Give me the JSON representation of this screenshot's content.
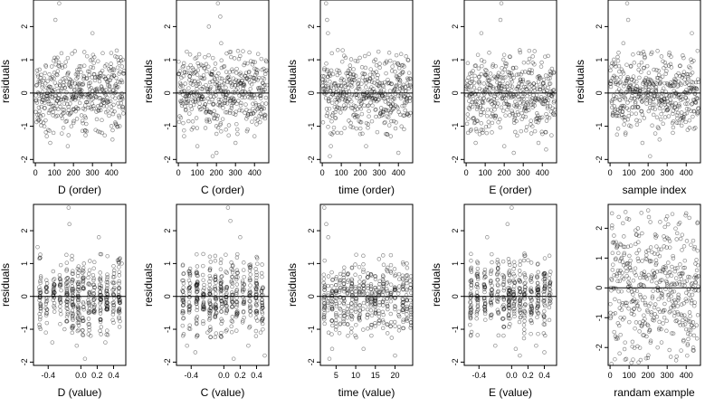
{
  "figure": {
    "panels": [
      {
        "id": "d-order",
        "xlabel": "D (order)",
        "ylabel": "residuals",
        "xticks": [
          "0",
          "100",
          "200",
          "300",
          "400"
        ],
        "yticks": [
          "-2",
          "-1",
          "0",
          "1",
          "2"
        ]
      },
      {
        "id": "c-order",
        "xlabel": "C (order)",
        "ylabel": "residuals",
        "xticks": [
          "0",
          "100",
          "200",
          "300",
          "400"
        ],
        "yticks": [
          "-2",
          "-1",
          "0",
          "1",
          "2"
        ]
      },
      {
        "id": "time-order",
        "xlabel": "time (order)",
        "ylabel": "residuals",
        "xticks": [
          "0",
          "100",
          "200",
          "300",
          "400"
        ],
        "yticks": [
          "-2",
          "-1",
          "0",
          "1",
          "2"
        ]
      },
      {
        "id": "e-order",
        "xlabel": "E (order)",
        "ylabel": "residuals",
        "xticks": [
          "0",
          "100",
          "200",
          "300",
          "400"
        ],
        "yticks": [
          "-2",
          "-1",
          "0",
          "1",
          "2"
        ]
      },
      {
        "id": "sample-index",
        "xlabel": "sample index",
        "ylabel": "residuals",
        "xticks": [
          "0",
          "100",
          "200",
          "300",
          "400"
        ],
        "yticks": [
          "-2",
          "-1",
          "0",
          "1",
          "2"
        ]
      },
      {
        "id": "d-value",
        "xlabel": "D (value)",
        "ylabel": "residuals",
        "xticks": [
          "-0.4",
          "0.0",
          "0.2",
          "0.4"
        ],
        "yticks": [
          "-2",
          "-1",
          "0",
          "1",
          "2"
        ]
      },
      {
        "id": "c-value",
        "xlabel": "C (value)",
        "ylabel": "residuals",
        "xticks": [
          "-0.4",
          "0.0",
          "0.2",
          "0.4"
        ],
        "yticks": [
          "-2",
          "-1",
          "0",
          "1",
          "2"
        ]
      },
      {
        "id": "time-value",
        "xlabel": "time (value)",
        "ylabel": "residuals",
        "xticks": [
          "5",
          "10",
          "15",
          "20"
        ],
        "yticks": [
          "-2",
          "-1",
          "0",
          "1",
          "2"
        ]
      },
      {
        "id": "e-value",
        "xlabel": "E (value)",
        "ylabel": "residuals",
        "xticks": [
          "-0.4",
          "0.0",
          "0.2",
          "0.4"
        ],
        "yticks": [
          "-2",
          "-1",
          "0",
          "1",
          "2"
        ]
      },
      {
        "id": "random-example",
        "xlabel": "randam example",
        "ylabel": "",
        "xticks": [
          "0",
          "100",
          "200",
          "300",
          "400"
        ],
        "yticks": [
          "-2",
          "-1",
          "0",
          "1",
          "2"
        ]
      }
    ]
  },
  "chart_data": [
    {
      "type": "scatter",
      "xlabel": "D (order)",
      "ylabel": "residuals",
      "xlim": [
        -10,
        475
      ],
      "ylim": [
        -2.1,
        2.8
      ],
      "n_points": 465,
      "x_pattern": "index",
      "reference_line_y": 0,
      "points": [
        [
          20,
          -0.8
        ],
        [
          60,
          -1.3
        ],
        [
          78,
          -1.5
        ],
        [
          95,
          -1.2
        ],
        [
          105,
          2.2
        ],
        [
          108,
          -0.7
        ],
        [
          125,
          2.7
        ],
        [
          150,
          -0.6
        ],
        [
          170,
          -1.6
        ],
        [
          200,
          -0.9
        ],
        [
          220,
          0.7
        ],
        [
          240,
          0.8
        ],
        [
          260,
          -0.5
        ],
        [
          300,
          1.8
        ],
        [
          340,
          0.6
        ],
        [
          350,
          -1.2
        ],
        [
          405,
          -1.4
        ],
        [
          420,
          1.1
        ],
        [
          440,
          0.9
        ],
        [
          460,
          1.0
        ]
      ]
    },
    {
      "type": "scatter",
      "xlabel": "C (order)",
      "ylabel": "residuals",
      "xlim": [
        -10,
        475
      ],
      "ylim": [
        -2.1,
        2.8
      ],
      "n_points": 465,
      "x_pattern": "index",
      "reference_line_y": 0,
      "points": [
        [
          30,
          -1.3
        ],
        [
          70,
          -1.1
        ],
        [
          100,
          -1.6
        ],
        [
          150,
          -0.8
        ],
        [
          160,
          2.0
        ],
        [
          180,
          -1.9
        ],
        [
          200,
          -1.8
        ],
        [
          208,
          2.7
        ],
        [
          220,
          2.3
        ],
        [
          225,
          1.5
        ],
        [
          250,
          -1.1
        ],
        [
          270,
          -0.6
        ],
        [
          300,
          -1.5
        ],
        [
          350,
          0.9
        ],
        [
          400,
          -1.3
        ],
        [
          440,
          0.7
        ]
      ]
    },
    {
      "type": "scatter",
      "xlabel": "time (order)",
      "ylabel": "residuals",
      "xlim": [
        -10,
        475
      ],
      "ylim": [
        -2.1,
        2.8
      ],
      "n_points": 465,
      "x_pattern": "index",
      "reference_line_y": 0,
      "points": [
        [
          20,
          2.7
        ],
        [
          25,
          2.2
        ],
        [
          30,
          1.8
        ],
        [
          40,
          -1.9
        ],
        [
          45,
          -1.6
        ],
        [
          80,
          -1.2
        ],
        [
          150,
          -0.9
        ],
        [
          230,
          -1.6
        ],
        [
          300,
          -0.7
        ],
        [
          360,
          -1.3
        ],
        [
          400,
          -1.8
        ],
        [
          430,
          0.8
        ],
        [
          450,
          1.0
        ]
      ]
    },
    {
      "type": "scatter",
      "xlabel": "E (order)",
      "ylabel": "residuals",
      "xlim": [
        -10,
        475
      ],
      "ylim": [
        -2.1,
        2.8
      ],
      "n_points": 465,
      "x_pattern": "index",
      "reference_line_y": 0,
      "points": [
        [
          10,
          -1.2
        ],
        [
          50,
          -1.5
        ],
        [
          80,
          1.8
        ],
        [
          120,
          -1.0
        ],
        [
          180,
          2.2
        ],
        [
          185,
          2.7
        ],
        [
          200,
          -1.6
        ],
        [
          250,
          -1.8
        ],
        [
          300,
          -0.7
        ],
        [
          350,
          1.1
        ],
        [
          380,
          -1.5
        ],
        [
          420,
          -1.7
        ],
        [
          460,
          0.6
        ]
      ]
    },
    {
      "type": "scatter",
      "xlabel": "sample index",
      "ylabel": "residuals",
      "xlim": [
        -10,
        475
      ],
      "ylim": [
        -2.1,
        2.8
      ],
      "n_points": 465,
      "x_pattern": "index",
      "reference_line_y": 0,
      "points": [
        [
          40,
          -0.6
        ],
        [
          70,
          1.5
        ],
        [
          90,
          2.7
        ],
        [
          95,
          2.2
        ],
        [
          110,
          -1.0
        ],
        [
          150,
          1.2
        ],
        [
          170,
          -1.5
        ],
        [
          210,
          -1.9
        ],
        [
          260,
          -1.4
        ],
        [
          330,
          -1.2
        ],
        [
          360,
          -0.9
        ],
        [
          430,
          1.8
        ],
        [
          460,
          -0.6
        ]
      ]
    },
    {
      "type": "scatter",
      "xlabel": "D (value)",
      "ylabel": "residuals",
      "xlim": [
        -0.58,
        0.55
      ],
      "ylim": [
        -2.1,
        2.8
      ],
      "n_points": 465,
      "x_pattern": "clustered",
      "reference_line_y": 0,
      "points": [
        [
          -0.53,
          1.5
        ],
        [
          -0.5,
          -0.7
        ],
        [
          -0.35,
          -1.4
        ],
        [
          -0.2,
          -1.0
        ],
        [
          -0.15,
          2.7
        ],
        [
          -0.14,
          2.2
        ],
        [
          -0.05,
          -1.5
        ],
        [
          0.05,
          -1.9
        ],
        [
          0.12,
          -1.2
        ],
        [
          0.22,
          1.8
        ],
        [
          0.3,
          -1.4
        ],
        [
          0.4,
          -0.8
        ],
        [
          0.45,
          1.1
        ],
        [
          0.5,
          1.0
        ]
      ]
    },
    {
      "type": "scatter",
      "xlabel": "C (value)",
      "ylabel": "residuals",
      "xlim": [
        -0.58,
        0.55
      ],
      "ylim": [
        -2.1,
        2.8
      ],
      "n_points": 465,
      "x_pattern": "clustered",
      "reference_line_y": 0,
      "points": [
        [
          -0.5,
          -1.2
        ],
        [
          -0.45,
          -1.5
        ],
        [
          -0.35,
          -1.7
        ],
        [
          -0.2,
          -1.1
        ],
        [
          0.05,
          2.7
        ],
        [
          0.08,
          2.3
        ],
        [
          0.12,
          -1.9
        ],
        [
          0.2,
          1.8
        ],
        [
          0.3,
          -1.5
        ],
        [
          0.45,
          -1.1
        ],
        [
          0.5,
          -1.8
        ]
      ]
    },
    {
      "type": "scatter",
      "xlabel": "time (value)",
      "ylabel": "residuals",
      "xlim": [
        1,
        24.5
      ],
      "ylim": [
        -2.1,
        2.8
      ],
      "n_points": 465,
      "x_pattern": "clustered",
      "reference_line_y": 0,
      "points": [
        [
          2,
          2.7
        ],
        [
          2.5,
          2.2
        ],
        [
          3,
          1.8
        ],
        [
          3.3,
          -1.9
        ],
        [
          4,
          -1.6
        ],
        [
          8,
          -1.2
        ],
        [
          12,
          -1.6
        ],
        [
          15,
          -0.9
        ],
        [
          20,
          -1.8
        ],
        [
          23,
          1.0
        ]
      ]
    },
    {
      "type": "scatter",
      "xlabel": "E (value)",
      "ylabel": "residuals",
      "xlim": [
        -0.58,
        0.55
      ],
      "ylim": [
        -2.1,
        2.8
      ],
      "n_points": 465,
      "x_pattern": "clustered",
      "reference_line_y": 0,
      "points": [
        [
          -0.5,
          -1.2
        ],
        [
          -0.3,
          1.8
        ],
        [
          -0.2,
          -1.5
        ],
        [
          -0.05,
          2.2
        ],
        [
          0.0,
          2.7
        ],
        [
          0.05,
          -1.6
        ],
        [
          0.1,
          -1.8
        ],
        [
          0.2,
          1.1
        ],
        [
          0.3,
          -1.5
        ],
        [
          0.4,
          -1.7
        ]
      ]
    },
    {
      "type": "scatter",
      "xlabel": "randam example",
      "ylabel": "",
      "xlim": [
        -10,
        475
      ],
      "ylim": [
        -2.6,
        2.8
      ],
      "n_points": 465,
      "x_pattern": "index",
      "reference_line_y": 0,
      "points": [
        [
          10,
          2.5
        ],
        [
          50,
          -2.2
        ],
        [
          100,
          2.3
        ],
        [
          150,
          -2.5
        ],
        [
          200,
          2.6
        ],
        [
          250,
          -2.0
        ],
        [
          300,
          2.4
        ],
        [
          350,
          -2.3
        ],
        [
          400,
          2.5
        ],
        [
          440,
          -2.1
        ],
        [
          460,
          2.2
        ]
      ]
    }
  ]
}
